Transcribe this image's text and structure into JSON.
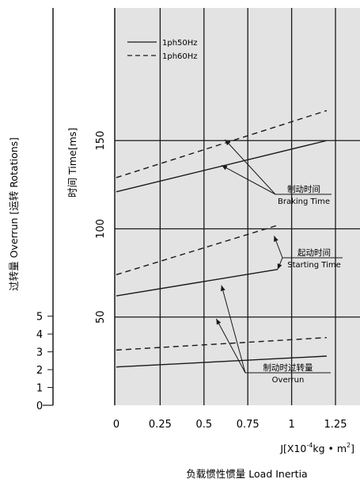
{
  "chart_data": {
    "type": "line",
    "xlabel_formula": "J[X10",
    "xlabel_exp": "-4",
    "xlabel_unit": "kg • m",
    "xlabel_unit_exp": "2",
    "xlabel_close": "]",
    "xlabel_title": "负载惯性惯量 Load Inertia",
    "ylabel_time": "时间 Time[ms]",
    "ylabel_overrun": "过转量 Overrun [运转 Rotations]",
    "xlim": [
      0,
      1.25
    ],
    "ylim_time": [
      0,
      200
    ],
    "ylim_overrun": [
      0,
      13
    ],
    "grid": true,
    "legend": {
      "placement": "top-left",
      "items": [
        {
          "label": "1ph50Hz",
          "style": "solid"
        },
        {
          "label": "1ph60Hz",
          "style": "dashed"
        }
      ]
    },
    "x_ticks": [
      "0",
      "0.25",
      "0.5",
      "0.75",
      "1",
      "1.25"
    ],
    "x_tick_values": [
      0,
      0.25,
      0.5,
      0.75,
      1,
      1.25
    ],
    "y_ticks_time": [
      50,
      100,
      150
    ],
    "y_ticks_overrun": [
      0,
      1,
      2,
      3,
      4,
      5
    ],
    "series": [
      {
        "group": "braking",
        "name": "1ph50Hz",
        "style": "solid",
        "x": [
          0,
          1.2
        ],
        "y": [
          121,
          150
        ]
      },
      {
        "group": "braking",
        "name": "1ph60Hz",
        "style": "dashed",
        "x": [
          0,
          1.2
        ],
        "y": [
          129,
          167
        ]
      },
      {
        "group": "starting",
        "name": "1ph50Hz",
        "style": "solid",
        "x": [
          0,
          0.92
        ],
        "y": [
          62,
          77
        ]
      },
      {
        "group": "starting",
        "name": "1ph60Hz",
        "style": "dashed",
        "x": [
          0,
          0.92
        ],
        "y": [
          74,
          102
        ]
      },
      {
        "group": "overrun",
        "name": "1ph50Hz",
        "style": "solid",
        "x": [
          0,
          1.2
        ],
        "y": [
          2.15,
          2.76
        ]
      },
      {
        "group": "overrun",
        "name": "1ph60Hz",
        "style": "dashed",
        "x": [
          0,
          1.2
        ],
        "y": [
          3.1,
          3.8
        ]
      }
    ],
    "annotations": [
      {
        "cn": "制动时间",
        "en": "Braking Time",
        "targets": [
          [
            0.62,
            150.5
          ],
          [
            0.6,
            136
          ]
        ]
      },
      {
        "cn": "起动时间",
        "en": "Starting Time",
        "targets": [
          [
            0.9,
            96
          ],
          [
            0.92,
            77
          ]
        ]
      },
      {
        "cn": "制动时过转量",
        "en": "Overrun",
        "targets": [
          [
            0.6,
            68
          ],
          [
            0.57,
            49
          ]
        ]
      }
    ]
  }
}
